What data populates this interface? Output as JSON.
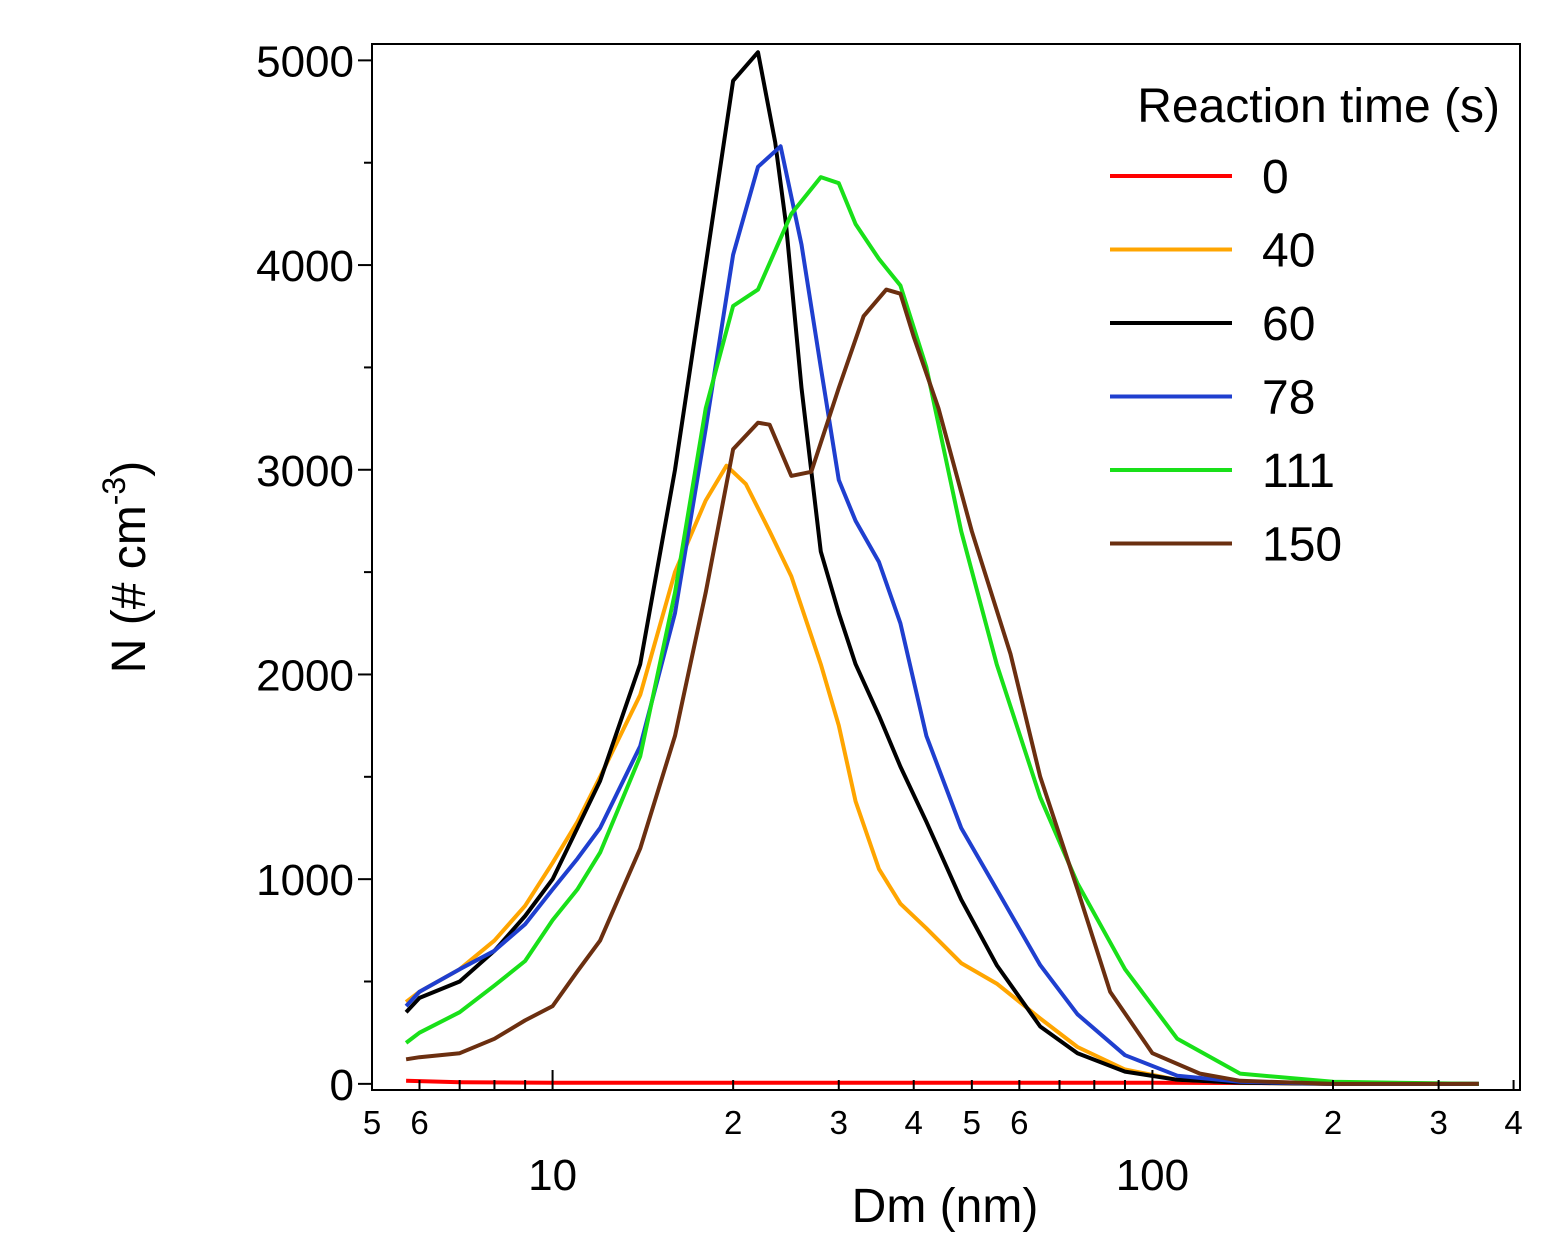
{
  "chart_data": {
    "type": "line",
    "xlabel": "Dm (nm)",
    "ylabel": {
      "main": "N (# cm",
      "superscript": "-3",
      "close": ")"
    },
    "xscale": "log",
    "xlim": [
      5.0,
      410
    ],
    "ylim": [
      -30,
      5080
    ],
    "x_major_ticks": [
      10,
      100
    ],
    "x_minor_ticks": [
      5,
      6,
      20,
      30,
      40,
      50,
      60,
      200,
      300,
      400
    ],
    "x_minor_labels": [
      "5",
      "6",
      "2",
      "3",
      "4",
      "5",
      "6",
      "2",
      "3",
      "4"
    ],
    "y_ticks": [
      0,
      1000,
      2000,
      3000,
      4000,
      5000
    ],
    "y_tick_labels": [
      "0",
      "1000",
      "2000",
      "3000",
      "4000",
      "5000"
    ],
    "grid": false,
    "legend": {
      "title": "Reaction time (s)",
      "placement": "top-right"
    },
    "series": [
      {
        "name": "0",
        "color": "#ff0000",
        "x": [
          5.7,
          7,
          10,
          20,
          50,
          100,
          200,
          350
        ],
        "y": [
          15,
          8,
          5,
          5,
          5,
          5,
          3,
          0
        ]
      },
      {
        "name": "40",
        "color": "#ffa500",
        "x": [
          5.7,
          6,
          7,
          8,
          9,
          10,
          11,
          12,
          14,
          16,
          18,
          19.5,
          21,
          23,
          25,
          28,
          30,
          32,
          35,
          38,
          42,
          48,
          55,
          65,
          75,
          90,
          110,
          140,
          200,
          350
        ],
        "y": [
          400,
          450,
          560,
          700,
          870,
          1080,
          1280,
          1500,
          1900,
          2500,
          2850,
          3020,
          2930,
          2700,
          2480,
          2050,
          1750,
          1380,
          1050,
          880,
          760,
          590,
          490,
          320,
          180,
          70,
          20,
          5,
          0,
          0
        ]
      },
      {
        "name": "60",
        "color": "#000000",
        "x": [
          5.7,
          6,
          7,
          8,
          9,
          10,
          11,
          12,
          14,
          16,
          18,
          20,
          22,
          23.5,
          24.5,
          26,
          28,
          30,
          32,
          35,
          38,
          42,
          48,
          55,
          65,
          75,
          90,
          110,
          140,
          200,
          350
        ],
        "y": [
          350,
          420,
          500,
          650,
          820,
          1000,
          1250,
          1480,
          2050,
          3000,
          4000,
          4900,
          5040,
          4600,
          4200,
          3400,
          2600,
          2300,
          2050,
          1800,
          1550,
          1280,
          900,
          580,
          280,
          150,
          60,
          20,
          5,
          0,
          0
        ]
      },
      {
        "name": "78",
        "color": "#1f3fcf",
        "x": [
          5.7,
          6,
          7,
          8,
          9,
          10,
          11,
          12,
          14,
          16,
          18,
          20,
          22,
          24,
          26,
          28,
          30,
          32,
          35,
          38,
          42,
          48,
          55,
          65,
          75,
          90,
          110,
          140,
          200,
          350
        ],
        "y": [
          380,
          450,
          560,
          650,
          780,
          950,
          1100,
          1250,
          1650,
          2300,
          3200,
          4050,
          4480,
          4580,
          4100,
          3500,
          2950,
          2750,
          2550,
          2250,
          1700,
          1250,
          950,
          580,
          340,
          140,
          40,
          10,
          0,
          0
        ]
      },
      {
        "name": "111",
        "color": "#19e019",
        "x": [
          5.7,
          6,
          7,
          8,
          9,
          10,
          11,
          12,
          14,
          16,
          18,
          20,
          22,
          25,
          28,
          30,
          32,
          35,
          38,
          42,
          48,
          55,
          65,
          75,
          90,
          110,
          140,
          200,
          350
        ],
        "y": [
          200,
          250,
          350,
          480,
          600,
          800,
          950,
          1130,
          1600,
          2400,
          3300,
          3800,
          3880,
          4250,
          4430,
          4400,
          4200,
          4030,
          3900,
          3500,
          2700,
          2050,
          1400,
          980,
          560,
          220,
          50,
          10,
          0
        ]
      },
      {
        "name": "150",
        "color": "#6b2f10",
        "x": [
          5.7,
          6,
          7,
          8,
          9,
          10,
          11,
          12,
          14,
          16,
          18,
          20,
          22,
          23,
          25,
          27,
          30,
          33,
          36,
          38,
          40,
          44,
          50,
          58,
          65,
          75,
          85,
          100,
          120,
          140,
          200,
          350
        ],
        "y": [
          120,
          130,
          150,
          220,
          310,
          380,
          550,
          700,
          1150,
          1700,
          2400,
          3100,
          3230,
          3220,
          2970,
          2990,
          3400,
          3750,
          3880,
          3860,
          3650,
          3300,
          2700,
          2100,
          1500,
          950,
          450,
          150,
          50,
          15,
          0,
          0
        ]
      }
    ]
  }
}
